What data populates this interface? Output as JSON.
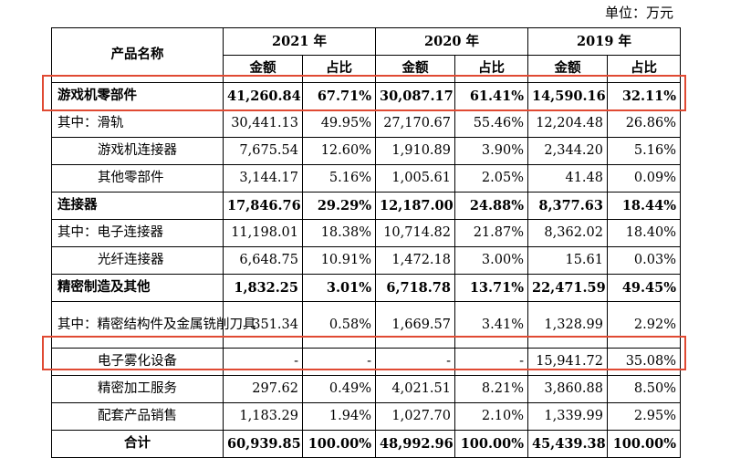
{
  "unit_label": "单位：万元",
  "header": {
    "product_name": "产品名称",
    "years": [
      "2021 年",
      "2020 年",
      "2019 年"
    ],
    "amount": "金额",
    "ratio": "占比"
  },
  "rows": [
    {
      "name": "游戏机零部件",
      "v": [
        "41,260.84",
        "67.71%",
        "30,087.17",
        "61.41%",
        "14,590.16",
        "32.11%"
      ]
    },
    {
      "name": "其中：滑轨",
      "v": [
        "30,441.13",
        "49.95%",
        "27,170.67",
        "55.46%",
        "12,204.48",
        "26.86%"
      ]
    },
    {
      "name": "游戏机连接器",
      "v": [
        "7,675.54",
        "12.60%",
        "1,910.89",
        "3.90%",
        "2,344.20",
        "5.16%"
      ]
    },
    {
      "name": "其他零部件",
      "v": [
        "3,144.17",
        "5.16%",
        "1,005.61",
        "2.05%",
        "41.48",
        "0.09%"
      ]
    },
    {
      "name": "连接器",
      "v": [
        "17,846.76",
        "29.29%",
        "12,187.00",
        "24.88%",
        "8,377.63",
        "18.44%"
      ]
    },
    {
      "name": "其中：电子连接器",
      "v": [
        "11,198.01",
        "18.38%",
        "10,714.82",
        "21.87%",
        "8,362.02",
        "18.40%"
      ]
    },
    {
      "name": "光纤连接器",
      "v": [
        "6,648.75",
        "10.91%",
        "1,472.18",
        "3.00%",
        "15.61",
        "0.03%"
      ]
    },
    {
      "name": "精密制造及其他",
      "v": [
        "1,832.25",
        "3.01%",
        "6,718.78",
        "13.71%",
        "22,471.59",
        "49.45%"
      ]
    },
    {
      "name": "其中：精密结构件及金属铣削刀具",
      "v": [
        "351.34",
        "0.58%",
        "1,669.57",
        "3.41%",
        "1,328.99",
        "2.92%"
      ]
    },
    {
      "name": "电子雾化设备",
      "v": [
        "-",
        "-",
        "-",
        "-",
        "15,941.72",
        "35.08%"
      ]
    },
    {
      "name": "精密加工服务",
      "v": [
        "297.62",
        "0.49%",
        "4,021.51",
        "8.21%",
        "3,860.88",
        "8.50%"
      ]
    },
    {
      "name": "配套产品销售",
      "v": [
        "1,183.29",
        "1.94%",
        "1,027.70",
        "2.10%",
        "1,339.99",
        "2.95%"
      ]
    },
    {
      "name": "合计",
      "v": [
        "60,939.85",
        "100.00%",
        "48,992.96",
        "100.00%",
        "45,439.38",
        "100.00%"
      ]
    }
  ],
  "highlight_color": "#e04a33"
}
